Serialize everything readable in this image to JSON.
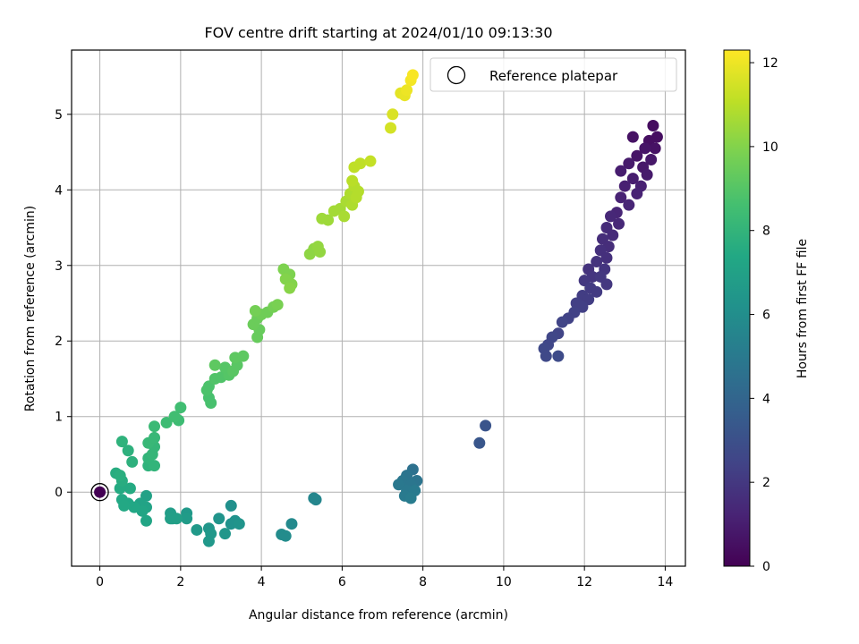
{
  "chart_data": {
    "type": "scatter",
    "title": "FOV centre drift starting at 2024/01/10 09:13:30",
    "xlabel": "Angular distance from reference (arcmin)",
    "ylabel": "Rotation from reference (arcmin)",
    "xlim": [
      -0.7,
      14.5
    ],
    "ylim": [
      -0.98,
      5.85
    ],
    "xticks": [
      0,
      2,
      4,
      6,
      8,
      10,
      12,
      14
    ],
    "yticks": [
      0,
      1,
      2,
      3,
      4,
      5
    ],
    "grid": true,
    "legend": {
      "position": "top-right",
      "entries": [
        "Reference platepar"
      ]
    },
    "reference_point": {
      "x": 0,
      "y": 0
    },
    "colorbar": {
      "label": "Hours from first FF file",
      "colormap": "viridis",
      "range": [
        0,
        12.3
      ],
      "ticks": [
        0,
        2,
        4,
        6,
        8,
        10,
        12
      ]
    },
    "points": [
      {
        "x": 0.0,
        "y": 0.0,
        "c": 0.0
      },
      {
        "x": 13.7,
        "y": 4.85,
        "c": 0.4
      },
      {
        "x": 13.8,
        "y": 4.7,
        "c": 0.5
      },
      {
        "x": 13.6,
        "y": 4.65,
        "c": 0.5
      },
      {
        "x": 13.2,
        "y": 4.7,
        "c": 0.6
      },
      {
        "x": 13.75,
        "y": 4.55,
        "c": 0.6
      },
      {
        "x": 13.5,
        "y": 4.55,
        "c": 0.7
      },
      {
        "x": 13.3,
        "y": 4.45,
        "c": 0.7
      },
      {
        "x": 13.65,
        "y": 4.4,
        "c": 0.8
      },
      {
        "x": 13.45,
        "y": 4.3,
        "c": 0.8
      },
      {
        "x": 13.1,
        "y": 4.35,
        "c": 0.9
      },
      {
        "x": 13.55,
        "y": 4.2,
        "c": 0.9
      },
      {
        "x": 12.9,
        "y": 4.25,
        "c": 1.0
      },
      {
        "x": 13.2,
        "y": 4.15,
        "c": 1.0
      },
      {
        "x": 13.4,
        "y": 4.05,
        "c": 1.1
      },
      {
        "x": 13.0,
        "y": 4.05,
        "c": 1.1
      },
      {
        "x": 13.3,
        "y": 3.95,
        "c": 1.2
      },
      {
        "x": 12.9,
        "y": 3.9,
        "c": 1.2
      },
      {
        "x": 13.1,
        "y": 3.8,
        "c": 1.3
      },
      {
        "x": 12.8,
        "y": 3.7,
        "c": 1.3
      },
      {
        "x": 12.65,
        "y": 3.65,
        "c": 1.4
      },
      {
        "x": 12.85,
        "y": 3.55,
        "c": 1.4
      },
      {
        "x": 12.55,
        "y": 3.5,
        "c": 1.5
      },
      {
        "x": 12.7,
        "y": 3.4,
        "c": 1.5
      },
      {
        "x": 12.45,
        "y": 3.35,
        "c": 1.6
      },
      {
        "x": 12.6,
        "y": 3.25,
        "c": 1.6
      },
      {
        "x": 12.4,
        "y": 3.2,
        "c": 1.7
      },
      {
        "x": 12.55,
        "y": 3.1,
        "c": 1.7
      },
      {
        "x": 12.3,
        "y": 3.05,
        "c": 1.8
      },
      {
        "x": 12.1,
        "y": 2.95,
        "c": 1.8
      },
      {
        "x": 12.5,
        "y": 2.95,
        "c": 1.9
      },
      {
        "x": 12.2,
        "y": 2.85,
        "c": 1.9
      },
      {
        "x": 12.4,
        "y": 2.85,
        "c": 2.0
      },
      {
        "x": 12.0,
        "y": 2.8,
        "c": 2.0
      },
      {
        "x": 12.55,
        "y": 2.75,
        "c": 2.0
      },
      {
        "x": 12.15,
        "y": 2.7,
        "c": 2.1
      },
      {
        "x": 12.3,
        "y": 2.65,
        "c": 2.1
      },
      {
        "x": 11.95,
        "y": 2.6,
        "c": 2.2
      },
      {
        "x": 12.1,
        "y": 2.55,
        "c": 2.2
      },
      {
        "x": 11.8,
        "y": 2.5,
        "c": 2.3
      },
      {
        "x": 11.95,
        "y": 2.45,
        "c": 2.3
      },
      {
        "x": 11.75,
        "y": 2.38,
        "c": 2.4
      },
      {
        "x": 11.6,
        "y": 2.3,
        "c": 2.4
      },
      {
        "x": 11.45,
        "y": 2.25,
        "c": 2.5
      },
      {
        "x": 11.35,
        "y": 2.1,
        "c": 2.5
      },
      {
        "x": 11.2,
        "y": 2.05,
        "c": 2.6
      },
      {
        "x": 11.1,
        "y": 1.95,
        "c": 2.6
      },
      {
        "x": 11.0,
        "y": 1.9,
        "c": 2.7
      },
      {
        "x": 11.05,
        "y": 1.8,
        "c": 2.7
      },
      {
        "x": 11.35,
        "y": 1.8,
        "c": 2.8
      },
      {
        "x": 9.55,
        "y": 0.88,
        "c": 3.2
      },
      {
        "x": 9.4,
        "y": 0.65,
        "c": 3.3
      },
      {
        "x": 7.75,
        "y": 0.3,
        "c": 4.6
      },
      {
        "x": 7.6,
        "y": 0.22,
        "c": 4.7
      },
      {
        "x": 7.85,
        "y": 0.15,
        "c": 4.7
      },
      {
        "x": 7.5,
        "y": 0.15,
        "c": 4.8
      },
      {
        "x": 7.7,
        "y": 0.1,
        "c": 4.8
      },
      {
        "x": 7.4,
        "y": 0.1,
        "c": 4.9
      },
      {
        "x": 7.6,
        "y": 0.02,
        "c": 4.9
      },
      {
        "x": 7.8,
        "y": 0.02,
        "c": 5.0
      },
      {
        "x": 7.55,
        "y": -0.05,
        "c": 5.0
      },
      {
        "x": 7.7,
        "y": -0.08,
        "c": 5.1
      },
      {
        "x": 5.3,
        "y": -0.08,
        "c": 5.6
      },
      {
        "x": 5.35,
        "y": -0.1,
        "c": 5.6
      },
      {
        "x": 4.75,
        "y": -0.42,
        "c": 5.8
      },
      {
        "x": 4.5,
        "y": -0.56,
        "c": 5.9
      },
      {
        "x": 4.6,
        "y": -0.58,
        "c": 5.9
      },
      {
        "x": 3.25,
        "y": -0.18,
        "c": 6.1
      },
      {
        "x": 3.35,
        "y": -0.38,
        "c": 6.2
      },
      {
        "x": 3.25,
        "y": -0.42,
        "c": 6.2
      },
      {
        "x": 3.45,
        "y": -0.42,
        "c": 6.3
      },
      {
        "x": 2.95,
        "y": -0.35,
        "c": 6.3
      },
      {
        "x": 3.1,
        "y": -0.55,
        "c": 6.4
      },
      {
        "x": 2.7,
        "y": -0.48,
        "c": 6.4
      },
      {
        "x": 2.75,
        "y": -0.55,
        "c": 6.5
      },
      {
        "x": 2.7,
        "y": -0.65,
        "c": 6.5
      },
      {
        "x": 2.4,
        "y": -0.5,
        "c": 6.6
      },
      {
        "x": 2.15,
        "y": -0.28,
        "c": 6.6
      },
      {
        "x": 2.15,
        "y": -0.35,
        "c": 6.7
      },
      {
        "x": 1.75,
        "y": -0.28,
        "c": 6.8
      },
      {
        "x": 1.8,
        "y": -0.35,
        "c": 6.8
      },
      {
        "x": 1.75,
        "y": -0.35,
        "c": 6.9
      },
      {
        "x": 1.9,
        "y": -0.35,
        "c": 6.9
      },
      {
        "x": 1.15,
        "y": -0.05,
        "c": 7.0
      },
      {
        "x": 1.0,
        "y": -0.15,
        "c": 7.1
      },
      {
        "x": 1.15,
        "y": -0.2,
        "c": 7.1
      },
      {
        "x": 1.05,
        "y": -0.25,
        "c": 7.2
      },
      {
        "x": 1.15,
        "y": -0.38,
        "c": 7.2
      },
      {
        "x": 0.85,
        "y": -0.2,
        "c": 7.3
      },
      {
        "x": 0.7,
        "y": -0.15,
        "c": 7.3
      },
      {
        "x": 0.55,
        "y": -0.1,
        "c": 7.4
      },
      {
        "x": 0.6,
        "y": -0.18,
        "c": 7.4
      },
      {
        "x": 0.75,
        "y": 0.05,
        "c": 7.5
      },
      {
        "x": 0.5,
        "y": 0.05,
        "c": 7.5
      },
      {
        "x": 0.55,
        "y": 0.15,
        "c": 7.6
      },
      {
        "x": 0.4,
        "y": 0.25,
        "c": 7.6
      },
      {
        "x": 0.5,
        "y": 0.22,
        "c": 7.7
      },
      {
        "x": 0.8,
        "y": 0.4,
        "c": 7.8
      },
      {
        "x": 0.7,
        "y": 0.55,
        "c": 7.8
      },
      {
        "x": 0.55,
        "y": 0.67,
        "c": 7.9
      },
      {
        "x": 1.2,
        "y": 0.35,
        "c": 7.9
      },
      {
        "x": 1.35,
        "y": 0.35,
        "c": 8.0
      },
      {
        "x": 1.2,
        "y": 0.45,
        "c": 8.0
      },
      {
        "x": 1.3,
        "y": 0.5,
        "c": 8.1
      },
      {
        "x": 1.35,
        "y": 0.6,
        "c": 8.1
      },
      {
        "x": 1.2,
        "y": 0.65,
        "c": 8.2
      },
      {
        "x": 1.35,
        "y": 0.72,
        "c": 8.2
      },
      {
        "x": 1.35,
        "y": 0.87,
        "c": 8.3
      },
      {
        "x": 1.65,
        "y": 0.92,
        "c": 8.4
      },
      {
        "x": 1.95,
        "y": 0.95,
        "c": 8.4
      },
      {
        "x": 1.85,
        "y": 1.0,
        "c": 8.5
      },
      {
        "x": 2.0,
        "y": 1.12,
        "c": 8.5
      },
      {
        "x": 2.75,
        "y": 1.18,
        "c": 8.7
      },
      {
        "x": 2.7,
        "y": 1.25,
        "c": 8.7
      },
      {
        "x": 2.65,
        "y": 1.35,
        "c": 8.8
      },
      {
        "x": 2.7,
        "y": 1.4,
        "c": 8.8
      },
      {
        "x": 2.85,
        "y": 1.5,
        "c": 8.9
      },
      {
        "x": 3.0,
        "y": 1.52,
        "c": 8.9
      },
      {
        "x": 3.2,
        "y": 1.55,
        "c": 9.0
      },
      {
        "x": 3.1,
        "y": 1.65,
        "c": 9.0
      },
      {
        "x": 3.3,
        "y": 1.6,
        "c": 9.1
      },
      {
        "x": 3.4,
        "y": 1.68,
        "c": 9.1
      },
      {
        "x": 3.35,
        "y": 1.78,
        "c": 9.2
      },
      {
        "x": 3.55,
        "y": 1.8,
        "c": 9.2
      },
      {
        "x": 2.85,
        "y": 1.68,
        "c": 9.2
      },
      {
        "x": 3.9,
        "y": 2.05,
        "c": 9.4
      },
      {
        "x": 3.95,
        "y": 2.15,
        "c": 9.4
      },
      {
        "x": 3.8,
        "y": 2.22,
        "c": 9.5
      },
      {
        "x": 3.9,
        "y": 2.3,
        "c": 9.5
      },
      {
        "x": 4.0,
        "y": 2.35,
        "c": 9.6
      },
      {
        "x": 4.15,
        "y": 2.38,
        "c": 9.6
      },
      {
        "x": 3.85,
        "y": 2.4,
        "c": 9.7
      },
      {
        "x": 4.3,
        "y": 2.45,
        "c": 9.7
      },
      {
        "x": 4.4,
        "y": 2.48,
        "c": 9.8
      },
      {
        "x": 4.55,
        "y": 2.95,
        "c": 9.9
      },
      {
        "x": 4.7,
        "y": 2.88,
        "c": 9.9
      },
      {
        "x": 4.6,
        "y": 2.82,
        "c": 10.0
      },
      {
        "x": 4.75,
        "y": 2.75,
        "c": 10.0
      },
      {
        "x": 4.7,
        "y": 2.7,
        "c": 10.1
      },
      {
        "x": 5.2,
        "y": 3.15,
        "c": 10.2
      },
      {
        "x": 5.3,
        "y": 3.22,
        "c": 10.2
      },
      {
        "x": 5.4,
        "y": 3.25,
        "c": 10.3
      },
      {
        "x": 5.45,
        "y": 3.18,
        "c": 10.3
      },
      {
        "x": 5.5,
        "y": 3.62,
        "c": 10.5
      },
      {
        "x": 5.65,
        "y": 3.6,
        "c": 10.5
      },
      {
        "x": 5.8,
        "y": 3.72,
        "c": 10.6
      },
      {
        "x": 5.95,
        "y": 3.75,
        "c": 10.6
      },
      {
        "x": 6.05,
        "y": 3.65,
        "c": 10.7
      },
      {
        "x": 6.1,
        "y": 3.85,
        "c": 10.7
      },
      {
        "x": 6.25,
        "y": 3.8,
        "c": 10.8
      },
      {
        "x": 6.2,
        "y": 3.95,
        "c": 10.8
      },
      {
        "x": 6.35,
        "y": 3.9,
        "c": 10.9
      },
      {
        "x": 6.3,
        "y": 4.05,
        "c": 10.9
      },
      {
        "x": 6.4,
        "y": 3.98,
        "c": 10.9
      },
      {
        "x": 6.25,
        "y": 4.12,
        "c": 11.0
      },
      {
        "x": 6.3,
        "y": 4.3,
        "c": 11.1
      },
      {
        "x": 6.45,
        "y": 4.35,
        "c": 11.1
      },
      {
        "x": 6.7,
        "y": 4.38,
        "c": 11.2
      },
      {
        "x": 7.2,
        "y": 4.82,
        "c": 11.5
      },
      {
        "x": 7.25,
        "y": 5.0,
        "c": 11.6
      },
      {
        "x": 7.45,
        "y": 5.28,
        "c": 11.8
      },
      {
        "x": 7.55,
        "y": 5.25,
        "c": 11.9
      },
      {
        "x": 7.6,
        "y": 5.32,
        "c": 12.0
      },
      {
        "x": 7.7,
        "y": 5.45,
        "c": 12.1
      },
      {
        "x": 7.75,
        "y": 5.52,
        "c": 12.2
      }
    ]
  }
}
